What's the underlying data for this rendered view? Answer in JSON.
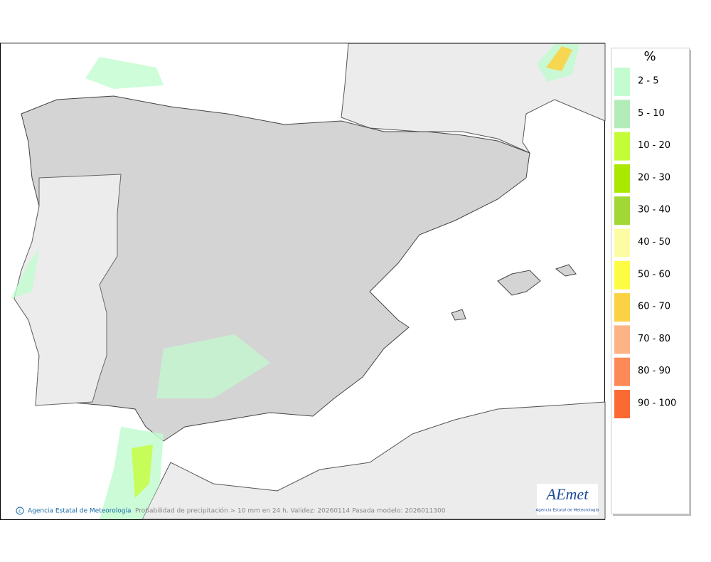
{
  "legend": {
    "title": "%",
    "items": [
      {
        "label": "2 - 5",
        "color": "#c2fcd0"
      },
      {
        "label": "5 - 10",
        "color": "#b4ecb8"
      },
      {
        "label": "10 - 20",
        "color": "#c4fc38"
      },
      {
        "label": "20 - 30",
        "color": "#aae800"
      },
      {
        "label": "30 - 40",
        "color": "#a2d836"
      },
      {
        "label": "40 - 50",
        "color": "#fcfca4"
      },
      {
        "label": "50 - 60",
        "color": "#fcfc44"
      },
      {
        "label": "60 - 70",
        "color": "#fcd244"
      },
      {
        "label": "70 - 80",
        "color": "#fcb486"
      },
      {
        "label": "80 - 90",
        "color": "#fc8a58"
      },
      {
        "label": "90 - 100",
        "color": "#fc6a34"
      }
    ]
  },
  "footer": {
    "credit": "Agencia Estatal de Meteorología",
    "caption": "Probabilidad de precipitación > 10 mm en 24 h. Validez: 20260114 Pasada modelo: 2026011300"
  },
  "logo": {
    "name": "AEmet",
    "subtitle": "Agencia Estatal de Meteorología"
  }
}
